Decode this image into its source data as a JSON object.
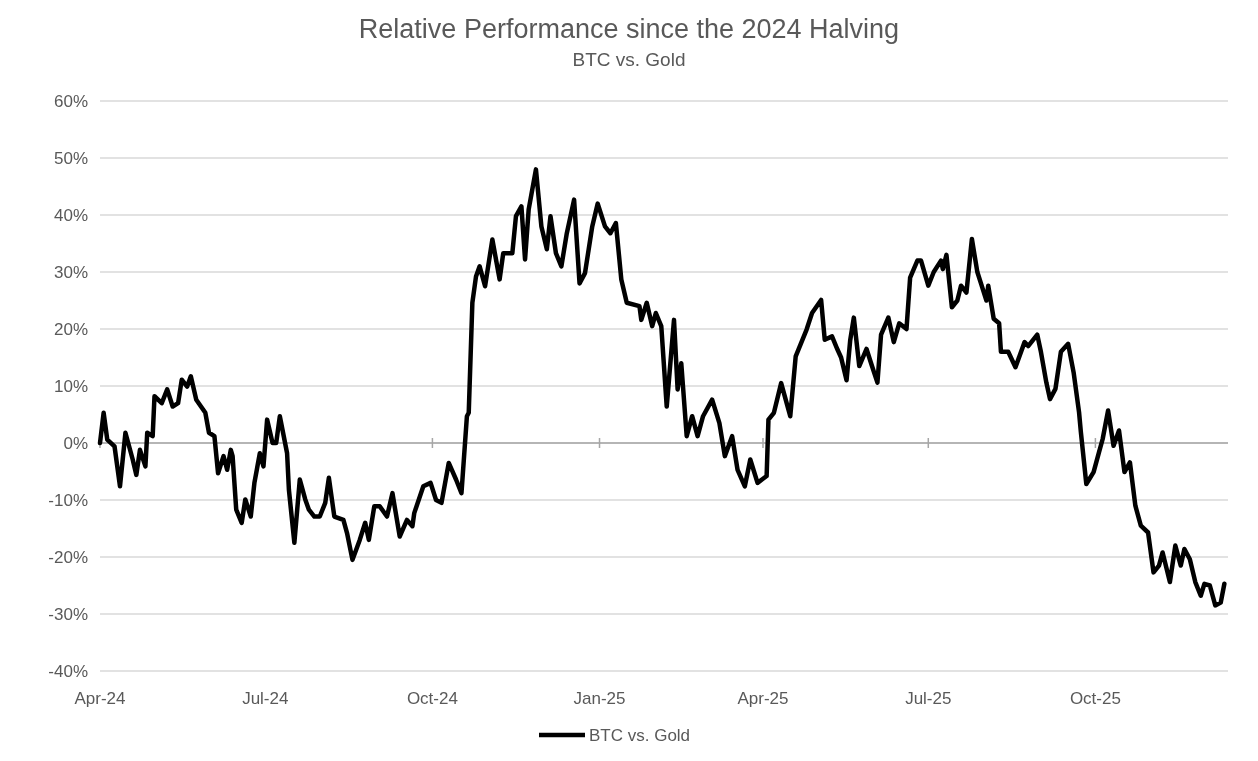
{
  "chart_data": {
    "type": "line",
    "title": "Relative Performance since the 2024 Halving",
    "subtitle": "BTC vs. Gold",
    "xlim": [
      "2024-04-01",
      "2025-12-13"
    ],
    "xticks": [
      {
        "value": "2024-04-01",
        "label": "Apr-24"
      },
      {
        "value": "2024-07-01",
        "label": "Jul-24"
      },
      {
        "value": "2024-10-01",
        "label": "Oct-24"
      },
      {
        "value": "2025-01-01",
        "label": "Jan-25"
      },
      {
        "value": "2025-04-01",
        "label": "Apr-25"
      },
      {
        "value": "2025-07-01",
        "label": "Jul-25"
      },
      {
        "value": "2025-10-01",
        "label": "Oct-25"
      }
    ],
    "ylim": [
      -40,
      60
    ],
    "yticks": [
      {
        "value": -40,
        "label": "-40%"
      },
      {
        "value": -30,
        "label": "-30%"
      },
      {
        "value": -20,
        "label": "-20%"
      },
      {
        "value": -10,
        "label": "-10%"
      },
      {
        "value": 0,
        "label": "0%"
      },
      {
        "value": 10,
        "label": "10%"
      },
      {
        "value": 20,
        "label": "20%"
      },
      {
        "value": 30,
        "label": "30%"
      },
      {
        "value": 40,
        "label": "40%"
      },
      {
        "value": 50,
        "label": "50%"
      },
      {
        "value": 60,
        "label": "60%"
      }
    ],
    "grid": "y",
    "legend": "bottom",
    "marker": "none",
    "line_style": "solid",
    "series": [
      {
        "name": "BTC vs. Gold",
        "color": "#000000",
        "x": [
          "2024-04-01",
          "2024-04-03",
          "2024-04-05",
          "2024-04-09",
          "2024-04-12",
          "2024-04-15",
          "2024-04-19",
          "2024-04-21",
          "2024-04-23",
          "2024-04-26",
          "2024-04-27",
          "2024-04-30",
          "2024-05-01",
          "2024-05-05",
          "2024-05-08",
          "2024-05-11",
          "2024-05-14",
          "2024-05-16",
          "2024-05-19",
          "2024-05-21",
          "2024-05-24",
          "2024-05-29",
          "2024-05-31",
          "2024-06-03",
          "2024-06-05",
          "2024-06-08",
          "2024-06-10",
          "2024-06-12",
          "2024-06-13",
          "2024-06-15",
          "2024-06-18",
          "2024-06-20",
          "2024-06-23",
          "2024-06-25",
          "2024-06-28",
          "2024-06-30",
          "2024-07-02",
          "2024-07-05",
          "2024-07-07",
          "2024-07-09",
          "2024-07-13",
          "2024-07-14",
          "2024-07-17",
          "2024-07-20",
          "2024-07-23",
          "2024-07-25",
          "2024-07-28",
          "2024-07-31",
          "2024-08-03",
          "2024-08-05",
          "2024-08-08",
          "2024-08-13",
          "2024-08-15",
          "2024-08-18",
          "2024-08-22",
          "2024-08-25",
          "2024-08-27",
          "2024-08-30",
          "2024-09-02",
          "2024-09-06",
          "2024-09-09",
          "2024-09-13",
          "2024-09-17",
          "2024-09-20",
          "2024-09-21",
          "2024-09-26",
          "2024-09-30",
          "2024-10-03",
          "2024-10-06",
          "2024-10-10",
          "2024-10-14",
          "2024-10-17",
          "2024-10-20",
          "2024-10-21",
          "2024-10-23",
          "2024-10-25",
          "2024-10-27",
          "2024-10-30",
          "2024-11-03",
          "2024-11-07",
          "2024-11-09",
          "2024-11-14",
          "2024-11-16",
          "2024-11-19",
          "2024-11-21",
          "2024-11-23",
          "2024-11-27",
          "2024-11-30",
          "2024-12-03",
          "2024-12-05",
          "2024-12-08",
          "2024-12-11",
          "2024-12-14",
          "2024-12-18",
          "2024-12-21",
          "2024-12-24",
          "2024-12-28",
          "2024-12-31",
          "2025-01-04",
          "2025-01-07",
          "2025-01-10",
          "2025-01-13",
          "2025-01-16",
          "2025-01-23",
          "2025-01-24",
          "2025-01-27",
          "2025-01-30",
          "2025-02-01",
          "2025-02-04",
          "2025-02-07",
          "2025-02-11",
          "2025-02-13",
          "2025-02-15",
          "2025-02-18",
          "2025-02-21",
          "2025-02-24",
          "2025-02-27",
          "2025-03-04",
          "2025-03-08",
          "2025-03-11",
          "2025-03-15",
          "2025-03-18",
          "2025-03-22",
          "2025-03-25",
          "2025-03-29",
          "2025-04-03",
          "2025-04-04",
          "2025-04-07",
          "2025-04-11",
          "2025-04-16",
          "2025-04-19",
          "2025-04-25",
          "2025-04-28",
          "2025-05-03",
          "2025-05-05",
          "2025-05-09",
          "2025-05-12",
          "2025-05-14",
          "2025-05-17",
          "2025-05-19",
          "2025-05-21",
          "2025-05-24",
          "2025-05-28",
          "2025-05-31",
          "2025-06-03",
          "2025-06-05",
          "2025-06-09",
          "2025-06-12",
          "2025-06-15",
          "2025-06-19",
          "2025-06-21",
          "2025-06-25",
          "2025-06-27",
          "2025-07-01",
          "2025-07-04",
          "2025-07-08",
          "2025-07-09",
          "2025-07-11",
          "2025-07-14",
          "2025-07-17",
          "2025-07-19",
          "2025-07-22",
          "2025-07-25",
          "2025-07-28",
          "2025-07-30",
          "2025-08-02",
          "2025-08-03",
          "2025-08-06",
          "2025-08-09",
          "2025-08-10",
          "2025-08-14",
          "2025-08-18",
          "2025-08-23",
          "2025-08-25",
          "2025-08-30",
          "2025-09-01",
          "2025-09-04",
          "2025-09-06",
          "2025-09-09",
          "2025-09-12",
          "2025-09-16",
          "2025-09-19",
          "2025-09-22",
          "2025-09-23",
          "2025-09-26",
          "2025-09-30",
          "2025-10-03",
          "2025-10-05",
          "2025-10-08",
          "2025-10-11",
          "2025-10-14",
          "2025-10-17",
          "2025-10-20",
          "2025-10-23",
          "2025-10-26",
          "2025-10-30",
          "2025-11-02",
          "2025-11-05",
          "2025-11-07",
          "2025-11-11",
          "2025-11-14",
          "2025-11-17",
          "2025-11-19",
          "2025-11-22",
          "2025-11-25",
          "2025-11-28",
          "2025-11-30",
          "2025-12-03",
          "2025-12-06",
          "2025-12-09",
          "2025-12-11"
        ],
        "values": [
          0,
          5.3,
          0.6,
          -0.6,
          -7.6,
          1.8,
          -2.9,
          -5.6,
          -1.2,
          -4.1,
          1.8,
          1.2,
          8.2,
          7,
          9.4,
          6.4,
          7,
          11.1,
          9.9,
          11.7,
          7.6,
          5.3,
          1.8,
          1.2,
          -5.3,
          -2.3,
          -4.7,
          -1.2,
          -2.3,
          -11.7,
          -14,
          -9.9,
          -12.9,
          -7,
          -1.8,
          -4.1,
          4.1,
          0,
          0,
          4.7,
          -1.8,
          -8.2,
          -17.5,
          -6.4,
          -9.9,
          -11.7,
          -12.9,
          -12.9,
          -10.5,
          -6.1,
          -12.9,
          -13.5,
          -15.8,
          -20.5,
          -17,
          -14,
          -17,
          -11.1,
          -11.1,
          -12.9,
          -8.8,
          -16.4,
          -13.5,
          -14.6,
          -12.3,
          -7.6,
          -7,
          -10,
          -10.5,
          -3.5,
          -6.4,
          -8.8,
          4.7,
          5.3,
          24.6,
          29.2,
          31,
          27.5,
          35.7,
          28.7,
          33.3,
          33.3,
          39.8,
          41.5,
          32.2,
          41,
          48,
          38,
          34,
          39.8,
          33.3,
          31,
          36.8,
          42.7,
          28,
          29.8,
          38,
          42,
          38,
          36.8,
          38.6,
          28.7,
          24.6,
          24,
          21.6,
          24.6,
          20.5,
          22.8,
          20.5,
          6.4,
          21.6,
          9.4,
          14,
          1.2,
          4.7,
          1.2,
          4.7,
          7.6,
          3.5,
          -2.3,
          1.2,
          -4.7,
          -7.6,
          -2.9,
          -7,
          -5.8,
          4.1,
          5.3,
          10.5,
          4.7,
          15.2,
          19.9,
          22.8,
          25.1,
          18.1,
          18.7,
          16.4,
          15,
          11,
          18,
          22,
          13.5,
          16.5,
          13.5,
          10.6,
          19,
          22,
          17.7,
          21,
          20,
          29,
          32,
          32,
          27.6,
          30,
          32,
          30.5,
          33,
          23.8,
          25,
          27.6,
          26.4,
          35.8,
          30,
          28,
          25,
          27.6,
          21.8,
          21,
          16,
          16,
          13.3,
          17.7,
          17,
          19,
          16,
          10.6,
          7.7,
          9.5,
          16,
          17.4,
          12.4,
          5.4,
          1.9,
          -7.2,
          -5.1,
          -1.6,
          0.7,
          5.7,
          -0.5,
          2.2,
          -5.1,
          -3.4,
          -11,
          -14.5,
          -15.7,
          -22.7,
          -21.5,
          -19.2,
          -24.4,
          -18,
          -21.5,
          -18.6,
          -20.4,
          -24.4,
          -26.8,
          -24.7,
          -25,
          -28.5,
          -28,
          -24.7
        ]
      }
    ]
  }
}
